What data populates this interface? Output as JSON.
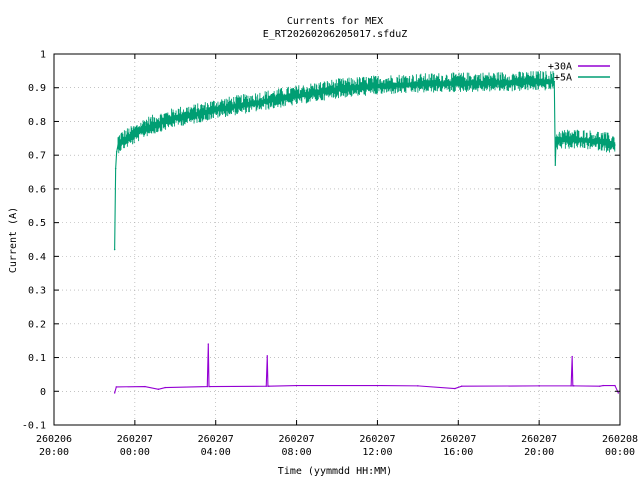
{
  "chart_data": {
    "type": "line",
    "title": "Currents for MEX",
    "subtitle": "E_RT20260206205017.sfduZ",
    "xlabel": "Time (yymmdd HH:MM)",
    "ylabel": "Current (A)",
    "ylim": [
      -0.1,
      1
    ],
    "y_ticks": [
      "-0.1",
      "0",
      "0.1",
      "0.2",
      "0.3",
      "0.4",
      "0.5",
      "0.6",
      "0.7",
      "0.8",
      "0.9",
      "1"
    ],
    "xlim": [
      "2026-02-06 20:00",
      "2026-02-08 00:00"
    ],
    "x_ticks": [
      {
        "date": "260206",
        "time": "20:00"
      },
      {
        "date": "260207",
        "time": "00:00"
      },
      {
        "date": "260207",
        "time": "04:00"
      },
      {
        "date": "260207",
        "time": "08:00"
      },
      {
        "date": "260207",
        "time": "12:00"
      },
      {
        "date": "260207",
        "time": "16:00"
      },
      {
        "date": "260207",
        "time": "20:00"
      },
      {
        "date": "260208",
        "time": "00:00"
      }
    ],
    "grid": true,
    "legend_position": "top-right",
    "series": [
      {
        "name": "+30A",
        "color": "#9400d3",
        "x": [
          "2026-02-06 23:00",
          "2026-02-06 23:05",
          "2026-02-07 00:30",
          "2026-02-07 01:10",
          "2026-02-07 01:30",
          "2026-02-07 03:35",
          "2026-02-07 03:38",
          "2026-02-07 03:40",
          "2026-02-07 03:43",
          "2026-02-07 06:30",
          "2026-02-07 06:33",
          "2026-02-07 06:35",
          "2026-02-07 06:38",
          "2026-02-07 08:00",
          "2026-02-07 12:00",
          "2026-02-07 14:00",
          "2026-02-07 15:50",
          "2026-02-07 16:10",
          "2026-02-07 20:00",
          "2026-02-07 21:35",
          "2026-02-07 21:38",
          "2026-02-07 21:40",
          "2026-02-07 21:43",
          "2026-02-07 23:00",
          "2026-02-07 23:10",
          "2026-02-07 23:45",
          "2026-02-07 23:55"
        ],
        "values": [
          -0.005,
          0.013,
          0.014,
          0.006,
          0.011,
          0.014,
          0.14,
          0.014,
          0.014,
          0.015,
          0.105,
          0.015,
          0.015,
          0.017,
          0.017,
          0.016,
          0.008,
          0.015,
          0.016,
          0.016,
          0.103,
          0.016,
          0.016,
          0.015,
          0.017,
          0.017,
          -0.005
        ]
      },
      {
        "name": "+5A",
        "color": "#009e73",
        "x": [
          "2026-02-06 23:00",
          "2026-02-06 23:03",
          "2026-02-06 23:06",
          "2026-02-06 23:10",
          "2026-02-06 23:20",
          "2026-02-07 00:00",
          "2026-02-07 00:30",
          "2026-02-07 01:00",
          "2026-02-07 02:00",
          "2026-02-07 03:00",
          "2026-02-07 04:00",
          "2026-02-07 05:00",
          "2026-02-07 06:00",
          "2026-02-07 07:00",
          "2026-02-07 08:00",
          "2026-02-07 09:00",
          "2026-02-07 10:00",
          "2026-02-07 11:00",
          "2026-02-07 12:00",
          "2026-02-07 13:00",
          "2026-02-07 14:00",
          "2026-02-07 15:00",
          "2026-02-07 16:00",
          "2026-02-07 17:00",
          "2026-02-07 18:00",
          "2026-02-07 19:00",
          "2026-02-07 20:00",
          "2026-02-07 20:30",
          "2026-02-07 20:45",
          "2026-02-07 20:48",
          "2026-02-07 20:50",
          "2026-02-07 21:00",
          "2026-02-07 22:00",
          "2026-02-07 23:00",
          "2026-02-07 23:45"
        ],
        "values": [
          0.42,
          0.66,
          0.71,
          0.73,
          0.74,
          0.76,
          0.78,
          0.79,
          0.81,
          0.82,
          0.835,
          0.845,
          0.855,
          0.865,
          0.875,
          0.885,
          0.895,
          0.9,
          0.905,
          0.908,
          0.91,
          0.912,
          0.913,
          0.914,
          0.915,
          0.916,
          0.918,
          0.918,
          0.918,
          0.67,
          0.74,
          0.745,
          0.745,
          0.74,
          0.73
        ]
      }
    ]
  }
}
